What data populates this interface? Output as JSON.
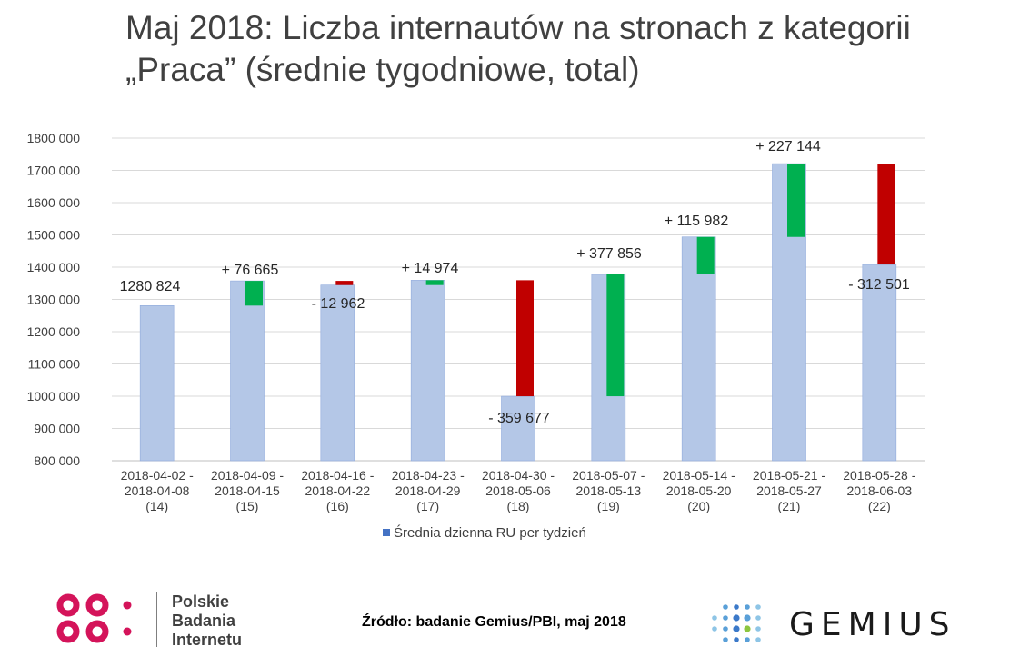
{
  "title": "Maj 2018: Liczba internautów na stronach z kategorii „Praca” (średnie tygodniowe, total)",
  "chart_data": {
    "type": "bar",
    "categories": [
      [
        "2018-04-02 -",
        "2018-04-08",
        "(14)"
      ],
      [
        "2018-04-09 -",
        "2018-04-15",
        "(15)"
      ],
      [
        "2018-04-16 -",
        "2018-04-22",
        "(16)"
      ],
      [
        "2018-04-23 -",
        "2018-04-29",
        "(17)"
      ],
      [
        "2018-04-30 -",
        "2018-05-06",
        "(18)"
      ],
      [
        "2018-05-07 -",
        "2018-05-13",
        "(19)"
      ],
      [
        "2018-05-14 -",
        "2018-05-20",
        "(20)"
      ],
      [
        "2018-05-21 -",
        "2018-05-27",
        "(21)"
      ],
      [
        "2018-05-28 -",
        "2018-06-03",
        "(22)"
      ]
    ],
    "series": [
      {
        "name": "Średnia dzienna RU per tydzień",
        "values": [
          1280824,
          1357489,
          1344527,
          1359501,
          999824,
          1377680,
          1493662,
          1720806,
          1408305
        ],
        "color": "#b4c7e7"
      }
    ],
    "changes": [
      null,
      76665,
      -12962,
      14974,
      -359677,
      377856,
      115982,
      227144,
      -312501
    ],
    "change_labels": [
      "1280 824",
      "+ 76 665",
      "- 12 962",
      "+ 14 974",
      "- 359 677",
      "+ 377 856",
      "+ 115 982",
      "+ 227 144",
      "- 312 501"
    ],
    "increase_color": "#00b050",
    "decrease_color": "#c00000",
    "ylim": [
      800000,
      1800000
    ],
    "yticks": [
      "800 000",
      "900 000",
      "1000 000",
      "1100 000",
      "1200 000",
      "1300 000",
      "1400 000",
      "1500 000",
      "1600 000",
      "1700 000",
      "1800 000"
    ],
    "ytick_values": [
      800000,
      900000,
      1000000,
      1100000,
      1200000,
      1300000,
      1400000,
      1500000,
      1600000,
      1700000,
      1800000
    ],
    "grid": true,
    "legend_position": "bottom"
  },
  "footer": {
    "pbi_lines": [
      "Polskie",
      "Badania",
      "Internetu"
    ],
    "source": "Źródło: badanie Gemius/PBI, maj 2018",
    "gemius": "GEMIUS"
  }
}
